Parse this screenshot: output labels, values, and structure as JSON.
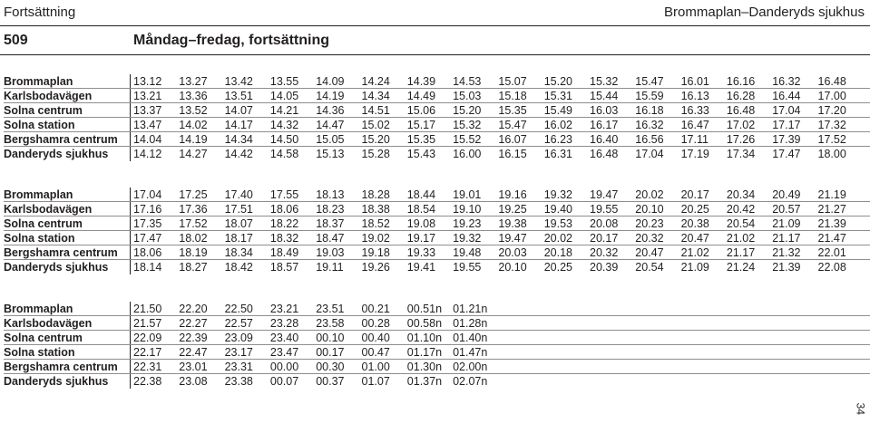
{
  "header": {
    "section": "Fortsättning",
    "route_name": "Brommaplan–Danderyds sjukhus",
    "route_number": "509",
    "day_label": "Måndag–fredag, fortsättning"
  },
  "blocks": [
    {
      "stops": [
        "Brommaplan",
        "Karlsbodavägen",
        "Solna centrum",
        "Solna station",
        "Bergshamra centrum",
        "Danderyds sjukhus"
      ],
      "times": [
        [
          "13.12",
          "13.27",
          "13.42",
          "13.55",
          "14.09",
          "14.24",
          "14.39",
          "14.53",
          "15.07",
          "15.20",
          "15.32",
          "15.47",
          "16.01",
          "16.16",
          "16.32",
          "16.48"
        ],
        [
          "13.21",
          "13.36",
          "13.51",
          "14.05",
          "14.19",
          "14.34",
          "14.49",
          "15.03",
          "15.18",
          "15.31",
          "15.44",
          "15.59",
          "16.13",
          "16.28",
          "16.44",
          "17.00"
        ],
        [
          "13.37",
          "13.52",
          "14.07",
          "14.21",
          "14.36",
          "14.51",
          "15.06",
          "15.20",
          "15.35",
          "15.49",
          "16.03",
          "16.18",
          "16.33",
          "16.48",
          "17.04",
          "17.20"
        ],
        [
          "13.47",
          "14.02",
          "14.17",
          "14.32",
          "14.47",
          "15.02",
          "15.17",
          "15.32",
          "15.47",
          "16.02",
          "16.17",
          "16.32",
          "16.47",
          "17.02",
          "17.17",
          "17.32"
        ],
        [
          "14.04",
          "14.19",
          "14.34",
          "14.50",
          "15.05",
          "15.20",
          "15.35",
          "15.52",
          "16.07",
          "16.23",
          "16.40",
          "16.56",
          "17.11",
          "17.26",
          "17.39",
          "17.52"
        ],
        [
          "14.12",
          "14.27",
          "14.42",
          "14.58",
          "15.13",
          "15.28",
          "15.43",
          "16.00",
          "16.15",
          "16.31",
          "16.48",
          "17.04",
          "17.19",
          "17.34",
          "17.47",
          "18.00"
        ]
      ]
    },
    {
      "stops": [
        "Brommaplan",
        "Karlsbodavägen",
        "Solna centrum",
        "Solna station",
        "Bergshamra centrum",
        "Danderyds sjukhus"
      ],
      "times": [
        [
          "17.04",
          "17.25",
          "17.40",
          "17.55",
          "18.13",
          "18.28",
          "18.44",
          "19.01",
          "19.16",
          "19.32",
          "19.47",
          "20.02",
          "20.17",
          "20.34",
          "20.49",
          "21.19"
        ],
        [
          "17.16",
          "17.36",
          "17.51",
          "18.06",
          "18.23",
          "18.38",
          "18.54",
          "19.10",
          "19.25",
          "19.40",
          "19.55",
          "20.10",
          "20.25",
          "20.42",
          "20.57",
          "21.27"
        ],
        [
          "17.35",
          "17.52",
          "18.07",
          "18.22",
          "18.37",
          "18.52",
          "19.08",
          "19.23",
          "19.38",
          "19.53",
          "20.08",
          "20.23",
          "20.38",
          "20.54",
          "21.09",
          "21.39"
        ],
        [
          "17.47",
          "18.02",
          "18.17",
          "18.32",
          "18.47",
          "19.02",
          "19.17",
          "19.32",
          "19.47",
          "20.02",
          "20.17",
          "20.32",
          "20.47",
          "21.02",
          "21.17",
          "21.47"
        ],
        [
          "18.06",
          "18.19",
          "18.34",
          "18.49",
          "19.03",
          "19.18",
          "19.33",
          "19.48",
          "20.03",
          "20.18",
          "20.32",
          "20.47",
          "21.02",
          "21.17",
          "21.32",
          "22.01"
        ],
        [
          "18.14",
          "18.27",
          "18.42",
          "18.57",
          "19.11",
          "19.26",
          "19.41",
          "19.55",
          "20.10",
          "20.25",
          "20.39",
          "20.54",
          "21.09",
          "21.24",
          "21.39",
          "22.08"
        ]
      ]
    },
    {
      "stops": [
        "Brommaplan",
        "Karlsbodavägen",
        "Solna centrum",
        "Solna station",
        "Bergshamra centrum",
        "Danderyds sjukhus"
      ],
      "times": [
        [
          "21.50",
          "22.20",
          "22.50",
          "23.21",
          "23.51",
          "00.21",
          "00.51n",
          "01.21n"
        ],
        [
          "21.57",
          "22.27",
          "22.57",
          "23.28",
          "23.58",
          "00.28",
          "00.58n",
          "01.28n"
        ],
        [
          "22.09",
          "22.39",
          "23.09",
          "23.40",
          "00.10",
          "00.40",
          "01.10n",
          "01.40n"
        ],
        [
          "22.17",
          "22.47",
          "23.17",
          "23.47",
          "00.17",
          "00.47",
          "01.17n",
          "01.47n"
        ],
        [
          "22.31",
          "23.01",
          "23.31",
          "00.00",
          "00.30",
          "01.00",
          "01.30n",
          "02.00n"
        ],
        [
          "22.38",
          "23.08",
          "23.38",
          "00.07",
          "00.37",
          "01.07",
          "01.37n",
          "02.07n"
        ]
      ]
    }
  ],
  "page_number": "34"
}
